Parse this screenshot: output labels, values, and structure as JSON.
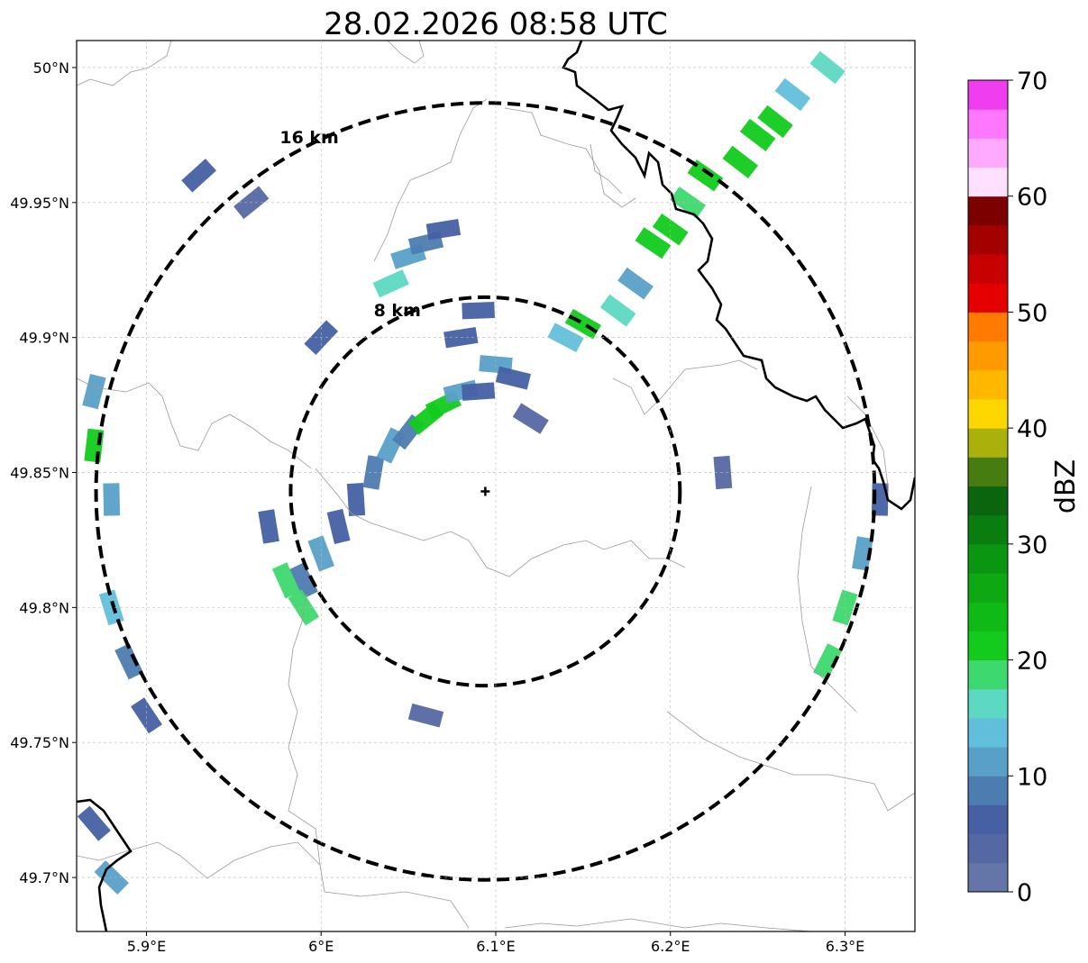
{
  "title": "28.02.2026 08:58 UTC",
  "map": {
    "lon_range": [
      5.86,
      6.34
    ],
    "lat_range": [
      49.68,
      50.01
    ],
    "x_ticks": [
      {
        "lon": 5.9,
        "label": "5.9°E"
      },
      {
        "lon": 6.0,
        "label": "6°E"
      },
      {
        "lon": 6.1,
        "label": "6.1°E"
      },
      {
        "lon": 6.2,
        "label": "6.2°E"
      },
      {
        "lon": 6.3,
        "label": "6.3°E"
      }
    ],
    "y_ticks": [
      {
        "lat": 50.0,
        "label": "50°N"
      },
      {
        "lat": 49.95,
        "label": "49.95°N"
      },
      {
        "lat": 49.9,
        "label": "49.9°N"
      },
      {
        "lat": 49.85,
        "label": "49.85°N"
      },
      {
        "lat": 49.8,
        "label": "49.8°N"
      },
      {
        "lat": 49.75,
        "label": "49.75°N"
      },
      {
        "lat": 49.7,
        "label": "49.7°N"
      }
    ],
    "radar_site": {
      "lon": 6.094,
      "lat": 49.843
    },
    "range_rings": [
      {
        "radius_km": 8,
        "label": "8 km"
      },
      {
        "radius_km": 16,
        "label": "16 km"
      }
    ],
    "gridlines": true
  },
  "colorbar": {
    "label": "dBZ",
    "min": 0,
    "max": 70,
    "ticks": [
      0,
      10,
      20,
      30,
      40,
      50,
      60,
      70
    ],
    "colors": [
      "#6475a8",
      "#5668a4",
      "#4660a3",
      "#4d7cb0",
      "#58a0c8",
      "#62bfdb",
      "#5dd8c2",
      "#3ed96e",
      "#12cb1c",
      "#10ba16",
      "#0ea812",
      "#0b9611",
      "#0a7d10",
      "#0b650e",
      "#477d10",
      "#aab10a",
      "#ffd700",
      "#ffb700",
      "#ff9a00",
      "#ff7a00",
      "#e50000",
      "#c70000",
      "#a50000",
      "#7d0000",
      "#ffe0ff",
      "#ffaaff",
      "#ff77ff",
      "#f03df0"
    ]
  },
  "chart_data": {
    "type": "heatmap",
    "title": "28.02.2026 08:58 UTC",
    "xlabel": "",
    "ylabel": "",
    "value_label": "dBZ",
    "xlim": [
      5.86,
      6.34
    ],
    "ylim": [
      49.68,
      50.01
    ],
    "vmin": 0,
    "vmax": 70,
    "cells": [
      [
        5.97,
        49.83,
        5
      ],
      [
        5.99,
        49.81,
        8
      ],
      [
        5.98,
        49.81,
        18
      ],
      [
        5.99,
        49.8,
        18
      ],
      [
        6.0,
        49.82,
        10
      ],
      [
        6.01,
        49.83,
        6
      ],
      [
        6.02,
        49.84,
        5
      ],
      [
        6.03,
        49.85,
        8
      ],
      [
        6.04,
        49.86,
        12
      ],
      [
        6.05,
        49.865,
        9
      ],
      [
        6.06,
        49.87,
        20
      ],
      [
        6.07,
        49.875,
        22
      ],
      [
        6.08,
        49.88,
        12
      ],
      [
        6.09,
        49.88,
        5
      ],
      [
        6.1,
        49.89,
        10
      ],
      [
        6.11,
        49.885,
        6
      ],
      [
        6.12,
        49.87,
        4
      ],
      [
        6.08,
        49.9,
        7
      ],
      [
        6.09,
        49.91,
        6
      ],
      [
        6.04,
        49.92,
        15
      ],
      [
        6.05,
        49.93,
        12
      ],
      [
        6.06,
        49.935,
        8
      ],
      [
        6.07,
        49.94,
        5
      ],
      [
        6.14,
        49.9,
        14
      ],
      [
        6.15,
        49.905,
        20
      ],
      [
        6.17,
        49.91,
        16
      ],
      [
        6.18,
        49.92,
        12
      ],
      [
        6.19,
        49.935,
        20
      ],
      [
        6.2,
        49.94,
        22
      ],
      [
        6.21,
        49.95,
        18
      ],
      [
        6.22,
        49.96,
        20
      ],
      [
        6.24,
        49.965,
        22
      ],
      [
        6.25,
        49.975,
        20
      ],
      [
        6.26,
        49.98,
        20
      ],
      [
        6.27,
        49.99,
        14
      ],
      [
        6.29,
        50.0,
        16
      ],
      [
        6.3,
        49.8,
        18
      ],
      [
        6.29,
        49.78,
        18
      ],
      [
        6.31,
        49.82,
        10
      ],
      [
        6.32,
        49.84,
        6
      ],
      [
        5.87,
        49.88,
        12
      ],
      [
        5.87,
        49.86,
        20
      ],
      [
        5.88,
        49.84,
        10
      ],
      [
        5.88,
        49.8,
        14
      ],
      [
        5.89,
        49.78,
        8
      ],
      [
        5.9,
        49.76,
        6
      ],
      [
        5.88,
        49.7,
        12
      ],
      [
        5.87,
        49.72,
        6
      ],
      [
        5.93,
        49.96,
        5
      ],
      [
        5.96,
        49.95,
        4
      ],
      [
        6.0,
        49.9,
        5
      ],
      [
        6.06,
        49.76,
        4
      ],
      [
        6.23,
        49.85,
        3
      ]
    ]
  }
}
